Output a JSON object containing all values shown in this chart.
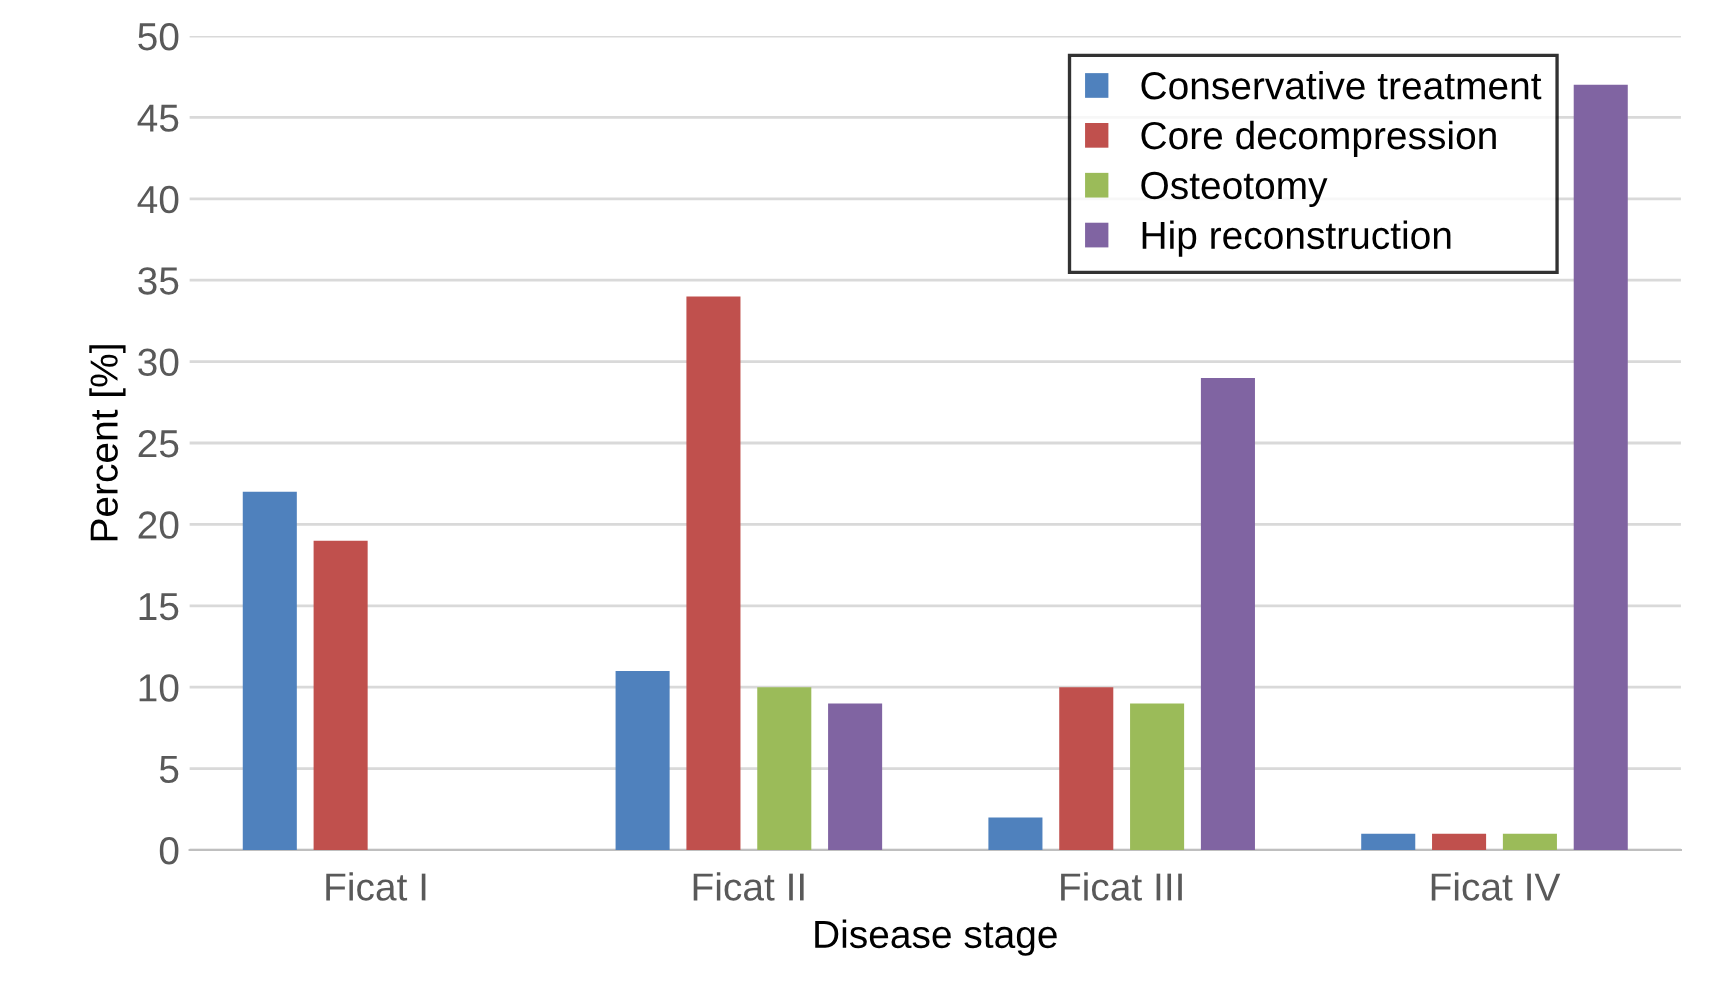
{
  "chart_data": {
    "type": "bar",
    "xlabel": "Disease stage",
    "ylabel": "Percent [%]",
    "categories": [
      "Ficat I",
      "Ficat II",
      "Ficat III",
      "Ficat IV"
    ],
    "series": [
      {
        "name": "Conservative treatment",
        "color": "#4f81bd",
        "values": [
          22,
          11,
          2,
          1
        ]
      },
      {
        "name": "Core decompression",
        "color": "#c0504d",
        "values": [
          19,
          34,
          10,
          1
        ]
      },
      {
        "name": "Osteotomy",
        "color": "#9bbb59",
        "values": [
          0,
          10,
          9,
          1
        ]
      },
      {
        "name": "Hip reconstruction",
        "color": "#8064a2",
        "values": [
          0,
          9,
          29,
          47
        ]
      }
    ],
    "ylim": [
      0,
      50
    ],
    "yticks": [
      0,
      5,
      10,
      15,
      20,
      25,
      30,
      35,
      40,
      45,
      50
    ],
    "grid": "y",
    "legend": "top right"
  }
}
